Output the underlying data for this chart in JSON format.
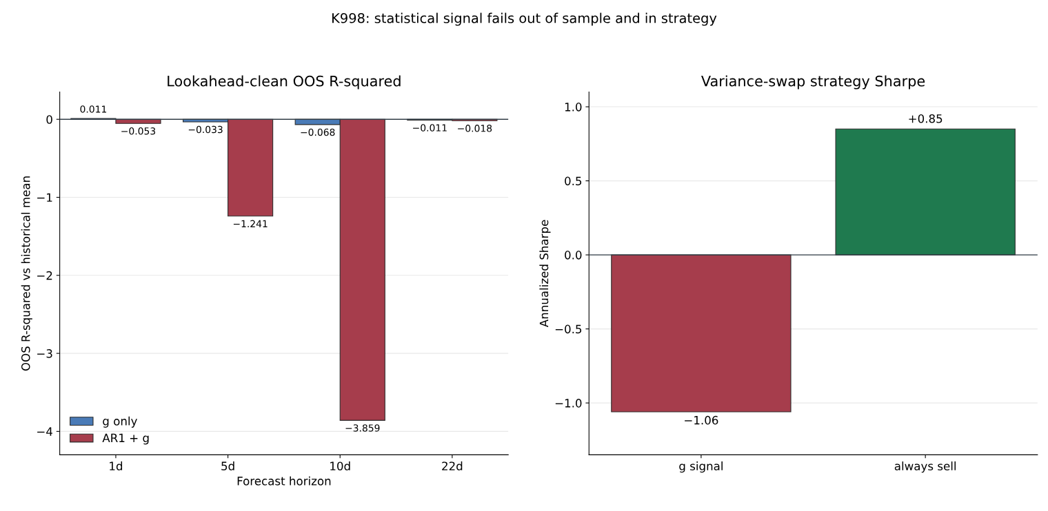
{
  "chart_data": [
    {
      "type": "bar",
      "title": "Lookahead-clean OOS R-squared",
      "xlabel": "Forecast horizon",
      "ylabel": "OOS R-squared vs historical mean",
      "annotations": [
        "K998: statistical signal fails out of sample and in strategy"
      ],
      "categories": [
        "1d",
        "5d",
        "10d",
        "22d"
      ],
      "series": [
        {
          "name": "g only",
          "color": "#4a7bb7",
          "values": [
            0.011,
            -0.033,
            -0.068,
            -0.011
          ],
          "value_labels": [
            "0.011",
            "−0.033",
            "−0.068",
            "−0.011"
          ]
        },
        {
          "name": "AR1 + g",
          "color": "#a63d4c",
          "values": [
            -0.053,
            -1.241,
            -3.859,
            -0.018
          ],
          "value_labels": [
            "−0.053",
            "−1.241",
            "−3.859",
            "−0.018"
          ]
        }
      ],
      "ylim": [
        -4.3,
        0.35
      ],
      "yticks": [
        {
          "value": -4,
          "label": "−4"
        },
        {
          "value": -3,
          "label": "−3"
        },
        {
          "value": -2,
          "label": "−2"
        },
        {
          "value": -1,
          "label": "−1"
        },
        0
      ],
      "ref_lines": [
        {
          "axis": "y",
          "value": 0,
          "color": "#333f48"
        }
      ],
      "grid": "y",
      "legend": "bottom left"
    },
    {
      "type": "bar",
      "title": "Variance-swap strategy Sharpe",
      "ylabel": "Annualized Sharpe",
      "categories": [
        "g signal",
        "always sell"
      ],
      "values": [
        -1.06,
        0.85
      ],
      "colors": [
        "#a63d4c",
        "#1f7a4f"
      ],
      "value_labels": [
        "−1.06",
        "+0.85"
      ],
      "ylim": [
        -1.35,
        1.1
      ],
      "yticks": [
        {
          "value": -1.0,
          "label": "−1.0"
        },
        {
          "value": -0.5,
          "label": "−0.5"
        },
        {
          "value": 0.0,
          "label": "0.0"
        },
        {
          "value": 0.5,
          "label": "0.5"
        },
        {
          "value": 1.0,
          "label": "1.0"
        }
      ],
      "ref_lines": [
        {
          "axis": "y",
          "value": 0,
          "color": "#333f48"
        }
      ],
      "grid": "y",
      "legend": false
    }
  ]
}
